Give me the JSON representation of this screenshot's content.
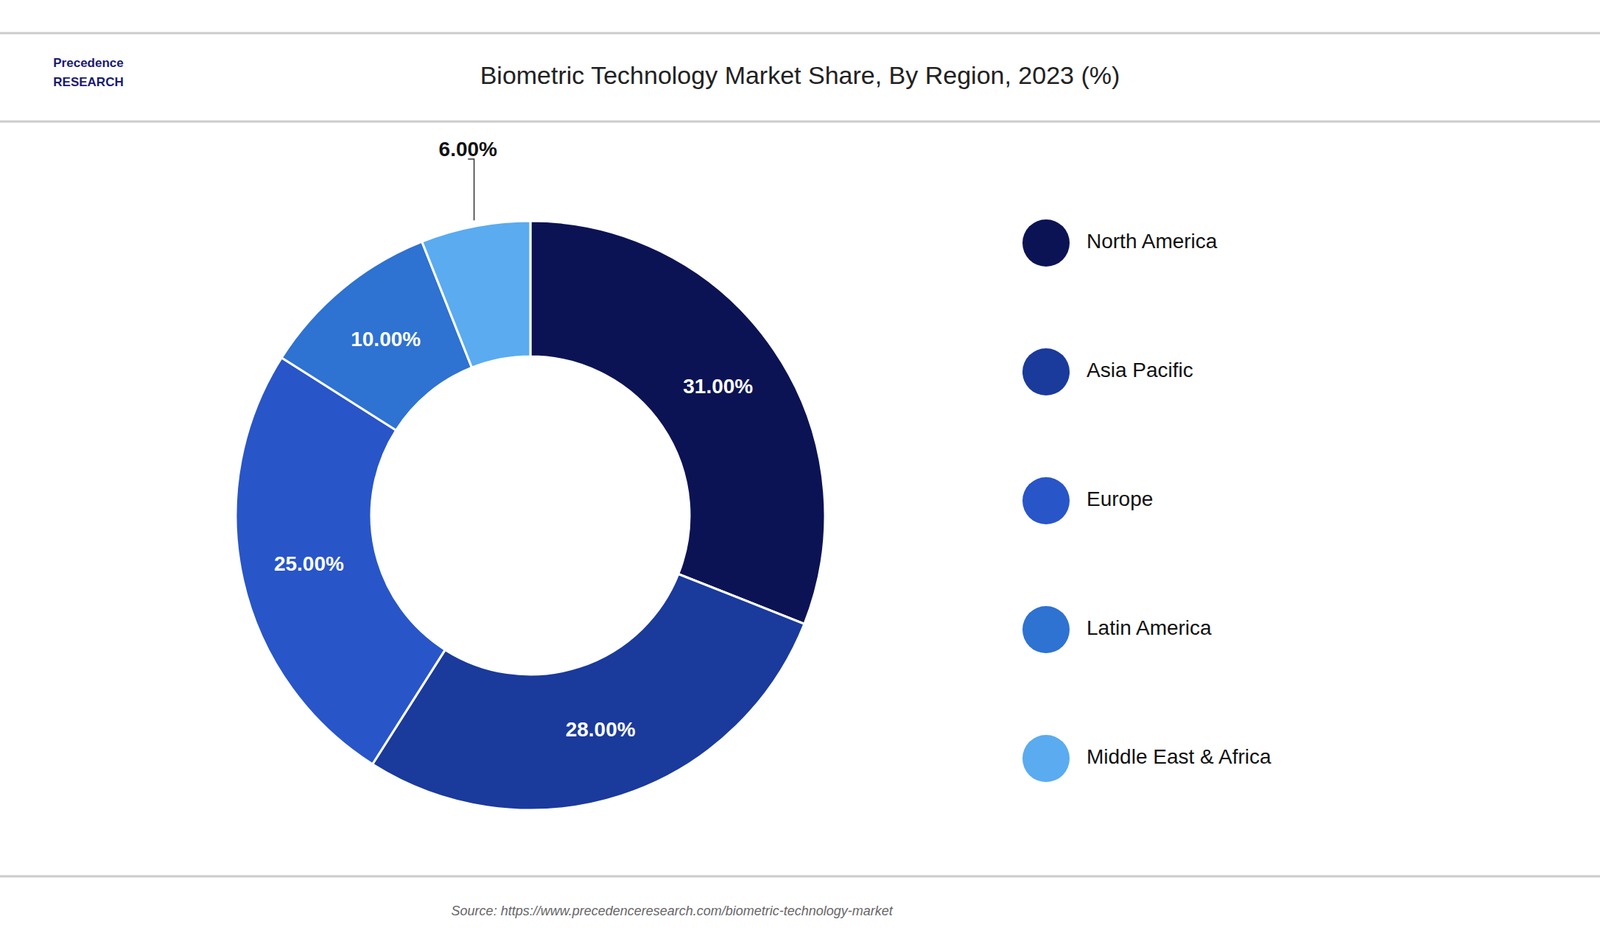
{
  "chart_data": {
    "type": "donut",
    "title": "Biometric Technology Market Share, By Region, 2023 (%)",
    "categories": [
      "North America",
      "Asia Pacific",
      "Europe",
      "Latin America",
      "Middle East & Africa"
    ],
    "values": [
      31.0,
      28.0,
      25.0,
      10.0,
      6.0
    ],
    "value_labels": [
      "31.00%",
      "28.00%",
      "25.00%",
      "10.00%",
      "6.00%"
    ],
    "colors": [
      "#0c1354",
      "#1a3a9c",
      "#2855c8",
      "#2e72d2",
      "#5aabf0"
    ],
    "data_labels": true,
    "legend": "right",
    "annotations": [
      "Precedence",
      "RESEARCH"
    ],
    "source": "Source: https://www.precedenceresearch.com/biometric-technology-market"
  }
}
